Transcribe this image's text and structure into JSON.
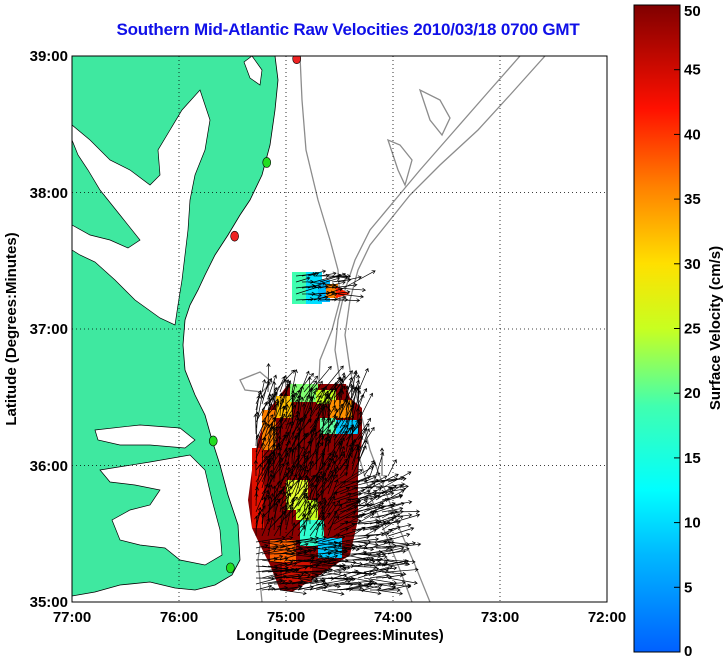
{
  "title": "Southern Mid-Atlantic Raw Velocities 2010/03/18 0700 GMT",
  "x_axis": {
    "label": "Longitude (Degrees:Minutes)",
    "ticks": [
      "77:00",
      "76:00",
      "75:00",
      "74:00",
      "73:00",
      "72:00"
    ],
    "range": [
      -77,
      -72
    ]
  },
  "y_axis": {
    "label": "Latitude (Degrees:Minutes)",
    "ticks": [
      "39:00",
      "38:00",
      "37:00",
      "36:00",
      "35:00"
    ],
    "range": [
      35,
      39
    ]
  },
  "colorbar": {
    "label": "Surface Velocity (cm/s)",
    "ticks": [
      "0",
      "5",
      "10",
      "15",
      "20",
      "25",
      "30",
      "35",
      "40",
      "45",
      "50"
    ],
    "range": [
      0,
      50
    ]
  },
  "colors": {
    "land": "#3fe8a0",
    "coast": "#000000",
    "bathymetry": "#8c8c8c",
    "title": "#1010e8",
    "station_green": "#22dd22",
    "station_red": "#ee2222"
  },
  "stations": [
    {
      "lat": 38.98,
      "lon": -74.9,
      "color": "red"
    },
    {
      "lat": 38.22,
      "lon": -75.18,
      "color": "green"
    },
    {
      "lat": 37.68,
      "lon": -75.48,
      "color": "red"
    },
    {
      "lat": 36.18,
      "lon": -75.68,
      "color": "green"
    },
    {
      "lat": 35.25,
      "lon": -75.52,
      "color": "green"
    }
  ],
  "grid": "dotted"
}
